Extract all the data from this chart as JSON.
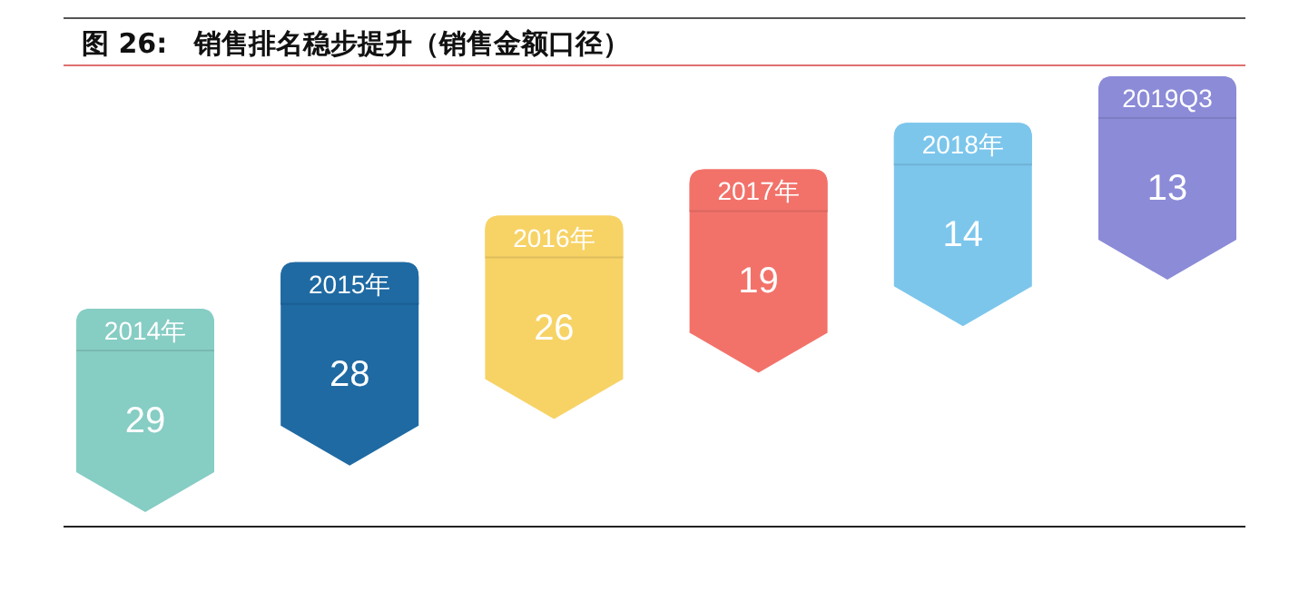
{
  "chart_data": {
    "type": "other",
    "title": "图 26:　销售排名稳步提升（销售金额口径）",
    "categories": [
      "2014年",
      "2015年",
      "2016年",
      "2017年",
      "2018年",
      "2019Q3"
    ],
    "values": [
      29,
      28,
      26,
      19,
      14,
      13
    ],
    "colors": [
      "#86cdc4",
      "#1f6aa3",
      "#f7d366",
      "#f2726a",
      "#7cc6ec",
      "#8b8bd8"
    ],
    "data_labels": true
  }
}
